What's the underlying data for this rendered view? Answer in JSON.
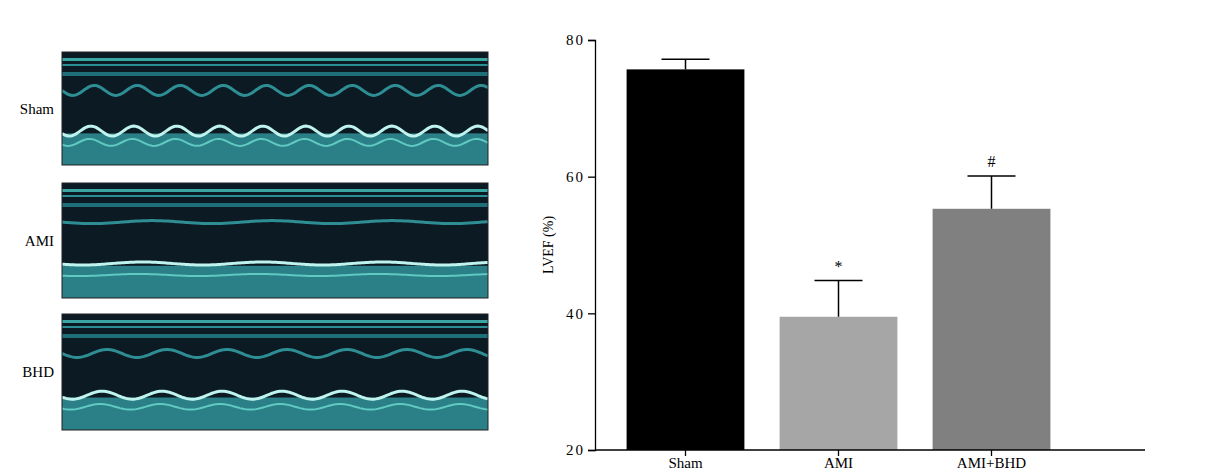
{
  "images": {
    "labels": [
      "Sham",
      "AMI",
      "BHD"
    ]
  },
  "chart_data": {
    "type": "bar",
    "categories": [
      "Sham",
      "AMI",
      "AMI+BHD"
    ],
    "values": [
      75.7,
      39.5,
      55.3
    ],
    "errors": [
      1.5,
      5.3,
      4.8
    ],
    "colors": [
      "#000000",
      "#a6a6a6",
      "#808080"
    ],
    "annotations": [
      null,
      "*",
      "#"
    ],
    "ylabel": "LVEF (%)",
    "ylim": [
      20,
      80
    ],
    "yticks": [
      20,
      40,
      60,
      80
    ]
  }
}
